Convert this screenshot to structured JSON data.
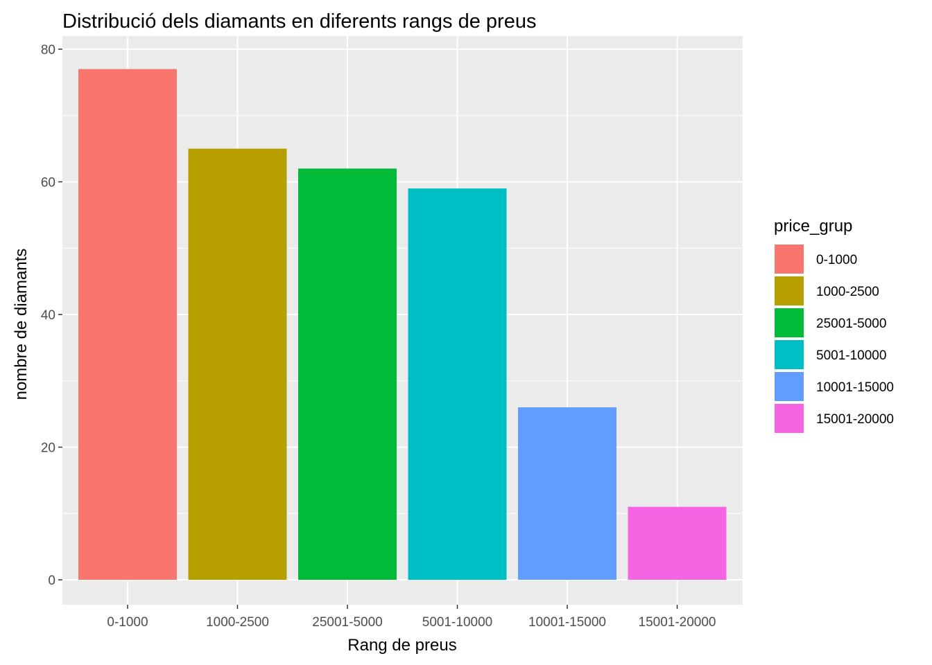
{
  "chart_data": {
    "type": "bar",
    "title": "Distribució dels diamants en diferents rangs de preus",
    "xlabel": "Rang de preus",
    "ylabel": "nombre de diamants",
    "categories": [
      "0-1000",
      "1000-2500",
      "25001-5000",
      "5001-10000",
      "10001-15000",
      "15001-20000"
    ],
    "values": [
      77,
      65,
      62,
      59,
      26,
      11
    ],
    "colors": [
      "#F8766D",
      "#B79F00",
      "#00BA38",
      "#00BFC4",
      "#619CFF",
      "#F564E3"
    ],
    "ylim": [
      0,
      80
    ],
    "yticks": [
      0,
      20,
      40,
      60,
      80
    ],
    "grid": true,
    "panel_background": "#EBEBEB",
    "legend": {
      "title": "price_grup",
      "position": "right",
      "entries": [
        "0-1000",
        "1000-2500",
        "25001-5000",
        "5001-10000",
        "10001-15000",
        "15001-20000"
      ]
    }
  }
}
